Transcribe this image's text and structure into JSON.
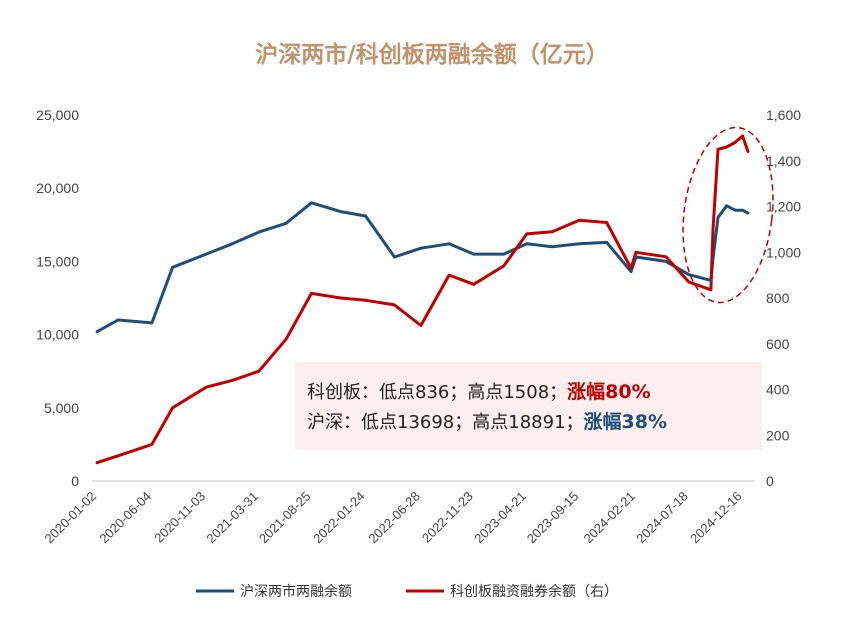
{
  "chart_data": {
    "type": "line",
    "title": "沪深两市/科创板两融余额（亿元）",
    "x": [
      "2020-01-02",
      "2020-03-01",
      "2020-06-04",
      "2020-08-01",
      "2020-11-03",
      "2021-01-15",
      "2021-03-31",
      "2021-06-15",
      "2021-08-25",
      "2021-11-15",
      "2022-01-24",
      "2022-04-15",
      "2022-06-28",
      "2022-09-15",
      "2022-11-23",
      "2023-02-15",
      "2023-04-21",
      "2023-07-01",
      "2023-09-15",
      "2023-12-01",
      "2024-02-07",
      "2024-02-21",
      "2024-05-15",
      "2024-07-18",
      "2024-09-18",
      "2024-09-24",
      "2024-10-08",
      "2024-11-01",
      "2024-11-25",
      "2024-12-16",
      "2024-12-31"
    ],
    "x_tick_labels": [
      "2020-01-02",
      "2020-06-04",
      "2020-11-03",
      "2021-03-31",
      "2021-08-25",
      "2022-01-24",
      "2022-06-28",
      "2022-11-23",
      "2023-04-21",
      "2023-09-15",
      "2024-02-21",
      "2024-07-18",
      "2024-12-16"
    ],
    "series": [
      {
        "name": "沪深两市两融余额",
        "axis": "left",
        "color": "#1F4E79",
        "values": [
          10200,
          11000,
          10800,
          14600,
          15500,
          16200,
          17000,
          17600,
          19000,
          18400,
          18100,
          15300,
          15900,
          16200,
          15500,
          15500,
          16200,
          16000,
          16200,
          16300,
          14300,
          15300,
          15000,
          14100,
          13700,
          15200,
          18000,
          18800,
          18500,
          18500,
          18300
        ]
      },
      {
        "name": "科创板融资融券余额（右）",
        "axis": "right",
        "color": "#C00000",
        "values": [
          80,
          110,
          160,
          320,
          410,
          440,
          480,
          620,
          820,
          800,
          790,
          770,
          680,
          900,
          860,
          940,
          1080,
          1090,
          1140,
          1130,
          930,
          1000,
          980,
          870,
          836,
          1100,
          1450,
          1460,
          1480,
          1508,
          1440
        ]
      }
    ],
    "y_left": {
      "min": 0,
      "max": 25000,
      "ticks": [
        "0",
        "5,000",
        "10,000",
        "15,000",
        "20,000",
        "25,000"
      ]
    },
    "y_right": {
      "min": 0,
      "max": 1600,
      "ticks": [
        "0",
        "200",
        "400",
        "600",
        "800",
        "1,000",
        "1,200",
        "1,400",
        "1,600"
      ]
    },
    "legend": {
      "position": "bottom",
      "items": [
        "沪深两市两融余额",
        "科创板融资融券余额（右）"
      ]
    },
    "annotation": {
      "line1_prefix": "科创板：低点836；高点1508；",
      "line1_highlight": "涨幅80%",
      "line2_prefix": "沪深：低点13698；高点18891；",
      "line2_highlight": "涨幅38%"
    },
    "colors": {
      "title": "#C0936B",
      "blue": "#1F4E79",
      "red": "#C00000",
      "annotation_bg": "#FBEFF0"
    }
  }
}
